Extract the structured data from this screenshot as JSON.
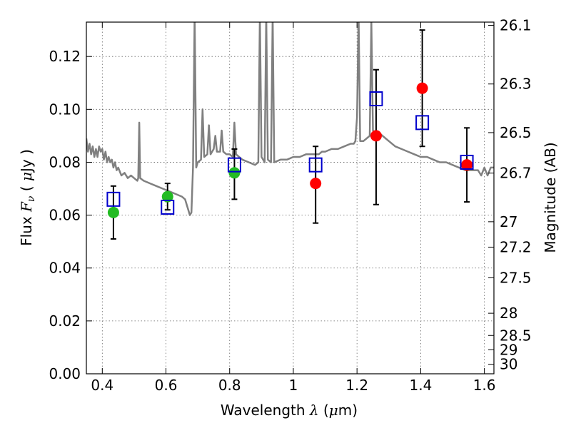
{
  "chart_data": {
    "type": "scatter",
    "xlabel": "Wavelength",
    "xlabel_math": "λ",
    "xlabel_unit_open": "(",
    "xlabel_unit_mu": "μ",
    "xlabel_unit_rest": "m)",
    "ylabel": "Flux",
    "ylabel_math": "F",
    "ylabel_math_sub": "ν",
    "ylabel_unit_open": "(",
    "ylabel_unit_mu": "μ",
    "ylabel_unit_rest": "Jy )",
    "y2label": "Magnitude (AB)",
    "xlim": [
      0.35,
      1.63
    ],
    "ylim": [
      0.0,
      0.133
    ],
    "grid": true,
    "x_ticks": [
      {
        "value": 0.4,
        "label": "0.4"
      },
      {
        "value": 0.6,
        "label": "0.6"
      },
      {
        "value": 0.8,
        "label": "0.8"
      },
      {
        "value": 1.0,
        "label": "1"
      },
      {
        "value": 1.2,
        "label": "1.2"
      },
      {
        "value": 1.4,
        "label": "1.4"
      },
      {
        "value": 1.6,
        "label": "1.6"
      }
    ],
    "y_ticks": [
      {
        "value": 0.0,
        "label": "0.00"
      },
      {
        "value": 0.02,
        "label": "0.02"
      },
      {
        "value": 0.04,
        "label": "0.04"
      },
      {
        "value": 0.06,
        "label": "0.06"
      },
      {
        "value": 0.08,
        "label": "0.08"
      },
      {
        "value": 0.1,
        "label": "0.10"
      },
      {
        "value": 0.12,
        "label": "0.12"
      }
    ],
    "y2_ticks": [
      {
        "flux": 0.1318,
        "label": "26.1"
      },
      {
        "flux": 0.1096,
        "label": "26.3"
      },
      {
        "flux": 0.0912,
        "label": "26.5"
      },
      {
        "flux": 0.0759,
        "label": "26.7"
      },
      {
        "flux": 0.0575,
        "label": "27"
      },
      {
        "flux": 0.0479,
        "label": "27.2"
      },
      {
        "flux": 0.0363,
        "label": "27.5"
      },
      {
        "flux": 0.0229,
        "label": "28"
      },
      {
        "flux": 0.0145,
        "label": "28.5"
      },
      {
        "flux": 0.0091,
        "label": "29"
      },
      {
        "flux": 0.0036,
        "label": "30"
      }
    ],
    "model_spectrum": {
      "color": "#808080",
      "points": [
        [
          0.35,
          0.089
        ],
        [
          0.355,
          0.084
        ],
        [
          0.36,
          0.087
        ],
        [
          0.365,
          0.083
        ],
        [
          0.37,
          0.086
        ],
        [
          0.375,
          0.082
        ],
        [
          0.38,
          0.085
        ],
        [
          0.385,
          0.082
        ],
        [
          0.39,
          0.086
        ],
        [
          0.395,
          0.084
        ],
        [
          0.4,
          0.085
        ],
        [
          0.405,
          0.081
        ],
        [
          0.41,
          0.084
        ],
        [
          0.415,
          0.08
        ],
        [
          0.42,
          0.082
        ],
        [
          0.425,
          0.08
        ],
        [
          0.43,
          0.081
        ],
        [
          0.435,
          0.078
        ],
        [
          0.44,
          0.08
        ],
        [
          0.445,
          0.077
        ],
        [
          0.45,
          0.078
        ],
        [
          0.46,
          0.075
        ],
        [
          0.47,
          0.076
        ],
        [
          0.48,
          0.074
        ],
        [
          0.49,
          0.075
        ],
        [
          0.5,
          0.074
        ],
        [
          0.51,
          0.073
        ],
        [
          0.513,
          0.074
        ],
        [
          0.516,
          0.095
        ],
        [
          0.519,
          0.074
        ],
        [
          0.53,
          0.073
        ],
        [
          0.55,
          0.072
        ],
        [
          0.57,
          0.071
        ],
        [
          0.59,
          0.07
        ],
        [
          0.61,
          0.069
        ],
        [
          0.63,
          0.068
        ],
        [
          0.65,
          0.067
        ],
        [
          0.66,
          0.066
        ],
        [
          0.67,
          0.062
        ],
        [
          0.675,
          0.06
        ],
        [
          0.68,
          0.061
        ],
        [
          0.685,
          0.078
        ],
        [
          0.69,
          0.136
        ],
        [
          0.695,
          0.078
        ],
        [
          0.7,
          0.08
        ],
        [
          0.71,
          0.081
        ],
        [
          0.715,
          0.1
        ],
        [
          0.72,
          0.082
        ],
        [
          0.73,
          0.083
        ],
        [
          0.735,
          0.094
        ],
        [
          0.74,
          0.083
        ],
        [
          0.75,
          0.085
        ],
        [
          0.755,
          0.09
        ],
        [
          0.76,
          0.084
        ],
        [
          0.77,
          0.084
        ],
        [
          0.775,
          0.092
        ],
        [
          0.78,
          0.084
        ],
        [
          0.79,
          0.083
        ],
        [
          0.8,
          0.083
        ],
        [
          0.81,
          0.082
        ],
        [
          0.815,
          0.095
        ],
        [
          0.82,
          0.083
        ],
        [
          0.84,
          0.081
        ],
        [
          0.86,
          0.08
        ],
        [
          0.88,
          0.079
        ],
        [
          0.89,
          0.08
        ],
        [
          0.895,
          0.136
        ],
        [
          0.9,
          0.082
        ],
        [
          0.91,
          0.08
        ],
        [
          0.915,
          0.136
        ],
        [
          0.92,
          0.081
        ],
        [
          0.93,
          0.08
        ],
        [
          0.935,
          0.136
        ],
        [
          0.94,
          0.08
        ],
        [
          0.96,
          0.081
        ],
        [
          0.98,
          0.081
        ],
        [
          1.0,
          0.082
        ],
        [
          1.02,
          0.082
        ],
        [
          1.04,
          0.083
        ],
        [
          1.06,
          0.083
        ],
        [
          1.08,
          0.083
        ],
        [
          1.09,
          0.084
        ],
        [
          1.1,
          0.084
        ],
        [
          1.12,
          0.085
        ],
        [
          1.14,
          0.085
        ],
        [
          1.16,
          0.086
        ],
        [
          1.18,
          0.087
        ],
        [
          1.19,
          0.087
        ],
        [
          1.195,
          0.088
        ],
        [
          1.2,
          0.097
        ],
        [
          1.205,
          0.136
        ],
        [
          1.21,
          0.088
        ],
        [
          1.22,
          0.088
        ],
        [
          1.23,
          0.089
        ],
        [
          1.24,
          0.09
        ],
        [
          1.245,
          0.133
        ],
        [
          1.25,
          0.092
        ],
        [
          1.26,
          0.091
        ],
        [
          1.27,
          0.091
        ],
        [
          1.28,
          0.09
        ],
        [
          1.3,
          0.088
        ],
        [
          1.32,
          0.086
        ],
        [
          1.34,
          0.085
        ],
        [
          1.36,
          0.084
        ],
        [
          1.38,
          0.083
        ],
        [
          1.4,
          0.082
        ],
        [
          1.42,
          0.082
        ],
        [
          1.44,
          0.081
        ],
        [
          1.46,
          0.08
        ],
        [
          1.48,
          0.08
        ],
        [
          1.5,
          0.079
        ],
        [
          1.52,
          0.078
        ],
        [
          1.54,
          0.077
        ],
        [
          1.56,
          0.077
        ],
        [
          1.58,
          0.077
        ],
        [
          1.59,
          0.075
        ],
        [
          1.6,
          0.078
        ],
        [
          1.61,
          0.075
        ],
        [
          1.62,
          0.078
        ],
        [
          1.63,
          0.078
        ]
      ]
    },
    "series": [
      {
        "marker": "circle",
        "color": "#22bb22",
        "points": [
          {
            "x": 0.435,
            "y": 0.061
          },
          {
            "x": 0.605,
            "y": 0.067
          },
          {
            "x": 0.815,
            "y": 0.076
          }
        ]
      },
      {
        "marker": "circle",
        "color": "#ff0000",
        "points": [
          {
            "x": 1.07,
            "y": 0.072
          },
          {
            "x": 1.26,
            "y": 0.09
          },
          {
            "x": 1.405,
            "y": 0.108
          },
          {
            "x": 1.545,
            "y": 0.079
          }
        ]
      },
      {
        "marker": "square-open",
        "color": "#0000cc",
        "points": [
          {
            "x": 0.435,
            "y": 0.066
          },
          {
            "x": 0.605,
            "y": 0.063
          },
          {
            "x": 0.815,
            "y": 0.079
          },
          {
            "x": 1.07,
            "y": 0.079
          },
          {
            "x": 1.26,
            "y": 0.104
          },
          {
            "x": 1.405,
            "y": 0.095
          },
          {
            "x": 1.545,
            "y": 0.08
          }
        ]
      }
    ],
    "errorbars": [
      {
        "x": 0.435,
        "low": 0.051,
        "high": 0.071
      },
      {
        "x": 0.605,
        "low": 0.062,
        "high": 0.072
      },
      {
        "x": 0.815,
        "low": 0.066,
        "high": 0.085
      },
      {
        "x": 1.07,
        "low": 0.057,
        "high": 0.086
      },
      {
        "x": 1.26,
        "low": 0.064,
        "high": 0.115
      },
      {
        "x": 1.405,
        "low": 0.086,
        "high": 0.13
      },
      {
        "x": 1.545,
        "low": 0.065,
        "high": 0.093
      }
    ]
  }
}
